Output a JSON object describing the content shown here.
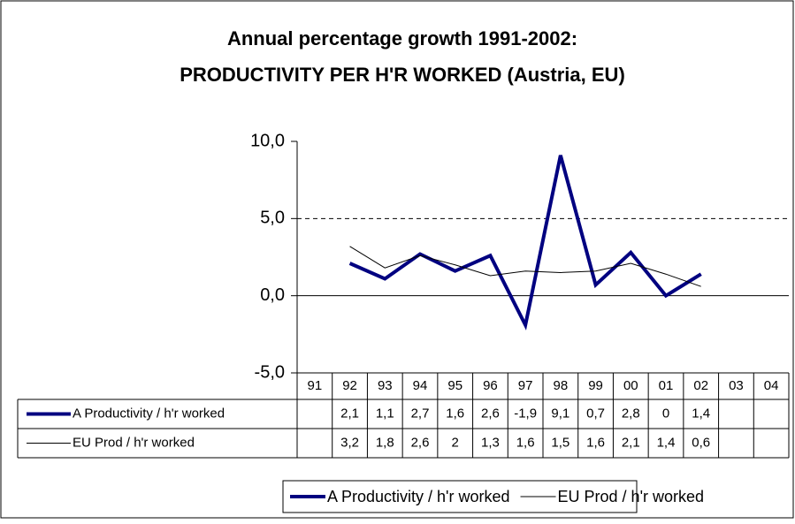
{
  "chart_data": {
    "type": "line",
    "title": "Annual percentage growth 1991-2002:",
    "subtitle": "PRODUCTIVITY PER H'R WORKED (Austria, EU)",
    "categories": [
      "91",
      "92",
      "93",
      "94",
      "95",
      "96",
      "97",
      "98",
      "99",
      "00",
      "01",
      "02",
      "03",
      "04"
    ],
    "series": [
      {
        "name": "A Productivity / h'r worked",
        "color": "#000080",
        "values": [
          null,
          2.1,
          1.1,
          2.7,
          1.6,
          2.6,
          -1.9,
          9.1,
          0.7,
          2.8,
          0,
          1.4,
          null,
          null
        ],
        "value_labels": [
          null,
          "2,1",
          "1,1",
          "2,7",
          "1,6",
          "2,6",
          "-1,9",
          "9,1",
          "0,7",
          "2,8",
          "0",
          "1,4",
          null,
          null
        ]
      },
      {
        "name": "EU Prod / h'r worked",
        "color": "#000000",
        "values": [
          null,
          3.2,
          1.8,
          2.6,
          2,
          1.3,
          1.6,
          1.5,
          1.6,
          2.1,
          1.4,
          0.6,
          null,
          null
        ],
        "value_labels": [
          null,
          "3,2",
          "1,8",
          "2,6",
          "2",
          "1,3",
          "1,6",
          "1,5",
          "1,6",
          "2,1",
          "1,4",
          "0,6",
          null,
          null
        ]
      }
    ],
    "ylim": [
      -5,
      10
    ],
    "yticks": [
      {
        "value": -5,
        "label": "-5,0"
      },
      {
        "value": 0,
        "label": "0,0"
      },
      {
        "value": 5,
        "label": "5,0"
      },
      {
        "value": 10,
        "label": "10,0"
      }
    ],
    "grid": true,
    "legend": "bottom"
  }
}
